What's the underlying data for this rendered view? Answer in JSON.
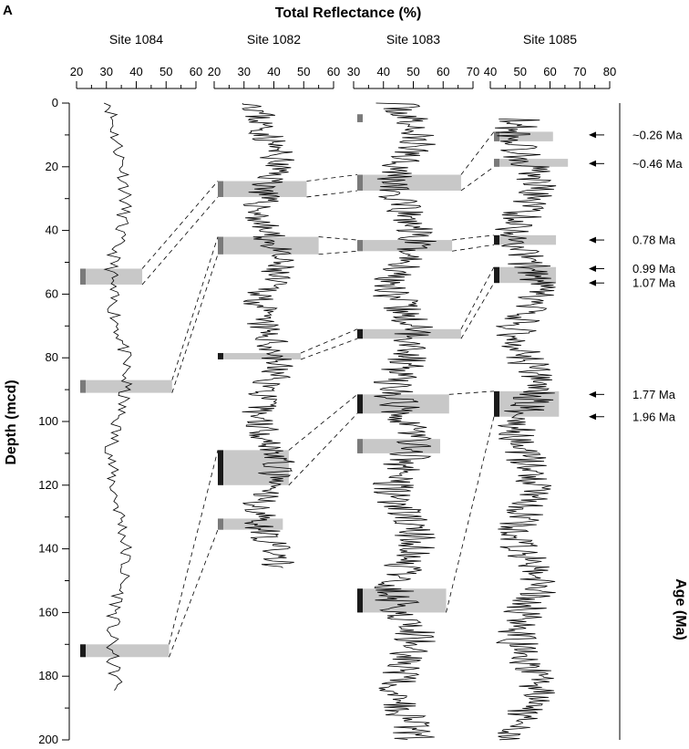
{
  "panel_letter": "A",
  "colors": {
    "trace": "#000000",
    "interval_fill": "#c8c8c8",
    "chron_dark": "#1a1a1a",
    "chron_grey": "#7a7a7a",
    "correlation_line": "#000000"
  },
  "chart_data": {
    "type": "line",
    "title": "Total Reflectance (%)",
    "ylabel": "Depth (mcd)",
    "right_axis_label": "Age (Ma)",
    "ylim": [
      200,
      0
    ],
    "yticks": [
      0,
      20,
      40,
      60,
      80,
      100,
      120,
      140,
      160,
      180,
      200
    ],
    "panels": [
      {
        "site": "Site 1084",
        "xlim": [
          20,
          60
        ],
        "xticks": [
          20,
          30,
          40,
          50,
          60
        ],
        "depth_range": [
          0,
          185
        ],
        "mean": 34,
        "amp": 4,
        "seed": 11,
        "intervals": [
          {
            "top": 52,
            "bottom": 57,
            "max_x": 42,
            "marker": "grey"
          },
          {
            "top": 87,
            "bottom": 91,
            "max_x": 52,
            "marker": "grey"
          },
          {
            "top": 170,
            "bottom": 174,
            "max_x": 51,
            "marker": "dark"
          }
        ]
      },
      {
        "site": "Site 1082",
        "xlim": [
          20,
          60
        ],
        "xticks": [
          20,
          30,
          40,
          50,
          60
        ],
        "depth_range": [
          0,
          146
        ],
        "mean": 38,
        "amp": 5,
        "seed": 23,
        "intervals": [
          {
            "top": 24.5,
            "bottom": 29.5,
            "max_x": 51,
            "marker": "grey"
          },
          {
            "top": 42,
            "bottom": 47.5,
            "max_x": 55,
            "marker": "grey"
          },
          {
            "top": 78.5,
            "bottom": 80.5,
            "max_x": 49,
            "marker": "dark"
          },
          {
            "top": 109,
            "bottom": 120,
            "max_x": 45,
            "marker": "dark"
          },
          {
            "top": 130.5,
            "bottom": 134,
            "max_x": 43,
            "marker": "grey"
          }
        ]
      },
      {
        "site": "Site 1083",
        "xlim": [
          30,
          70
        ],
        "xticks": [
          30,
          40,
          50,
          60,
          70
        ],
        "depth_range": [
          0,
          200
        ],
        "mean": 47,
        "amp": 6,
        "seed": 37,
        "intervals": [
          {
            "top": 3.5,
            "bottom": 6,
            "max_x": 31,
            "marker": "grey"
          },
          {
            "top": 22.5,
            "bottom": 27.5,
            "max_x": 66,
            "marker": "grey"
          },
          {
            "top": 43,
            "bottom": 46.5,
            "max_x": 63,
            "marker": "grey"
          },
          {
            "top": 71,
            "bottom": 74,
            "max_x": 66,
            "marker": "dark"
          },
          {
            "top": 91.5,
            "bottom": 97.5,
            "max_x": 62,
            "marker": "dark"
          },
          {
            "top": 105.5,
            "bottom": 110,
            "max_x": 59,
            "marker": "grey"
          },
          {
            "top": 152.5,
            "bottom": 160,
            "max_x": 61,
            "marker": "dark"
          }
        ]
      },
      {
        "site": "Site 1085",
        "xlim": [
          40,
          80
        ],
        "xticks": [
          40,
          50,
          60,
          70,
          80
        ],
        "depth_range": [
          5,
          200
        ],
        "mean": 52,
        "amp": 6,
        "seed": 53,
        "intervals": [
          {
            "top": 9,
            "bottom": 12,
            "max_x": 61,
            "marker": "grey"
          },
          {
            "top": 17.5,
            "bottom": 20,
            "max_x": 66,
            "marker": "grey"
          },
          {
            "top": 41.5,
            "bottom": 44.5,
            "max_x": 62,
            "marker": "dark"
          },
          {
            "top": 51.5,
            "bottom": 56.5,
            "max_x": 62,
            "marker": "dark"
          },
          {
            "top": 90.5,
            "bottom": 98.5,
            "max_x": 63,
            "marker": "dark"
          }
        ]
      }
    ],
    "correlations": [
      [
        [
          1,
          3
        ],
        [
          0,
          0
        ]
      ],
      [
        [
          2,
          3
        ],
        [
          1,
          0
        ]
      ],
      [
        [
          1,
          4
        ],
        [
          0,
          1
        ]
      ],
      [
        [
          2,
          4
        ],
        [
          1,
          1
        ]
      ],
      [
        [
          1,
          4
        ],
        [
          2,
          2
        ]
      ],
      [
        [
          1,
          5
        ],
        [
          2,
          3
        ]
      ],
      [
        [
          2,
          5
        ],
        [
          3,
          2
        ]
      ],
      [
        [
          2,
          6
        ],
        [
          3,
          3
        ]
      ],
      [
        [
          2,
          6
        ],
        [
          4,
          0
        ]
      ],
      [
        [
          2,
          7
        ],
        [
          5,
          0
        ]
      ],
      [
        [
          3,
          0
        ],
        [
          2,
          0
        ]
      ],
      [
        [
          3,
          1
        ],
        [
          2,
          1
        ]
      ],
      [
        [
          3,
          2
        ],
        [
          1,
          1
        ]
      ],
      [
        [
          3,
          3
        ],
        [
          2,
          2
        ]
      ],
      [
        [
          3,
          3
        ],
        [
          3,
          0
        ]
      ],
      [
        [
          3,
          4
        ],
        [
          3,
          1
        ]
      ],
      [
        [
          3,
          4
        ],
        [
          4,
          0
        ]
      ],
      [
        [
          3,
          5
        ],
        [
          4,
          1
        ]
      ],
      [
        [
          3,
          5
        ],
        [
          5,
          0
        ]
      ],
      [
        [
          3,
          6
        ],
        [
          6,
          0
        ]
      ]
    ],
    "age_markers": [
      {
        "label": "~0.26 Ma",
        "depth": 10
      },
      {
        "label": "~0.46 Ma",
        "depth": 19
      },
      {
        "label": "0.78 Ma",
        "depth": 43
      },
      {
        "label": "0.99 Ma",
        "depth": 52
      },
      {
        "label": "1.07 Ma",
        "depth": 56.5
      },
      {
        "label": "1.77 Ma",
        "depth": 91.5
      },
      {
        "label": "1.96 Ma",
        "depth": 98.5
      }
    ]
  }
}
